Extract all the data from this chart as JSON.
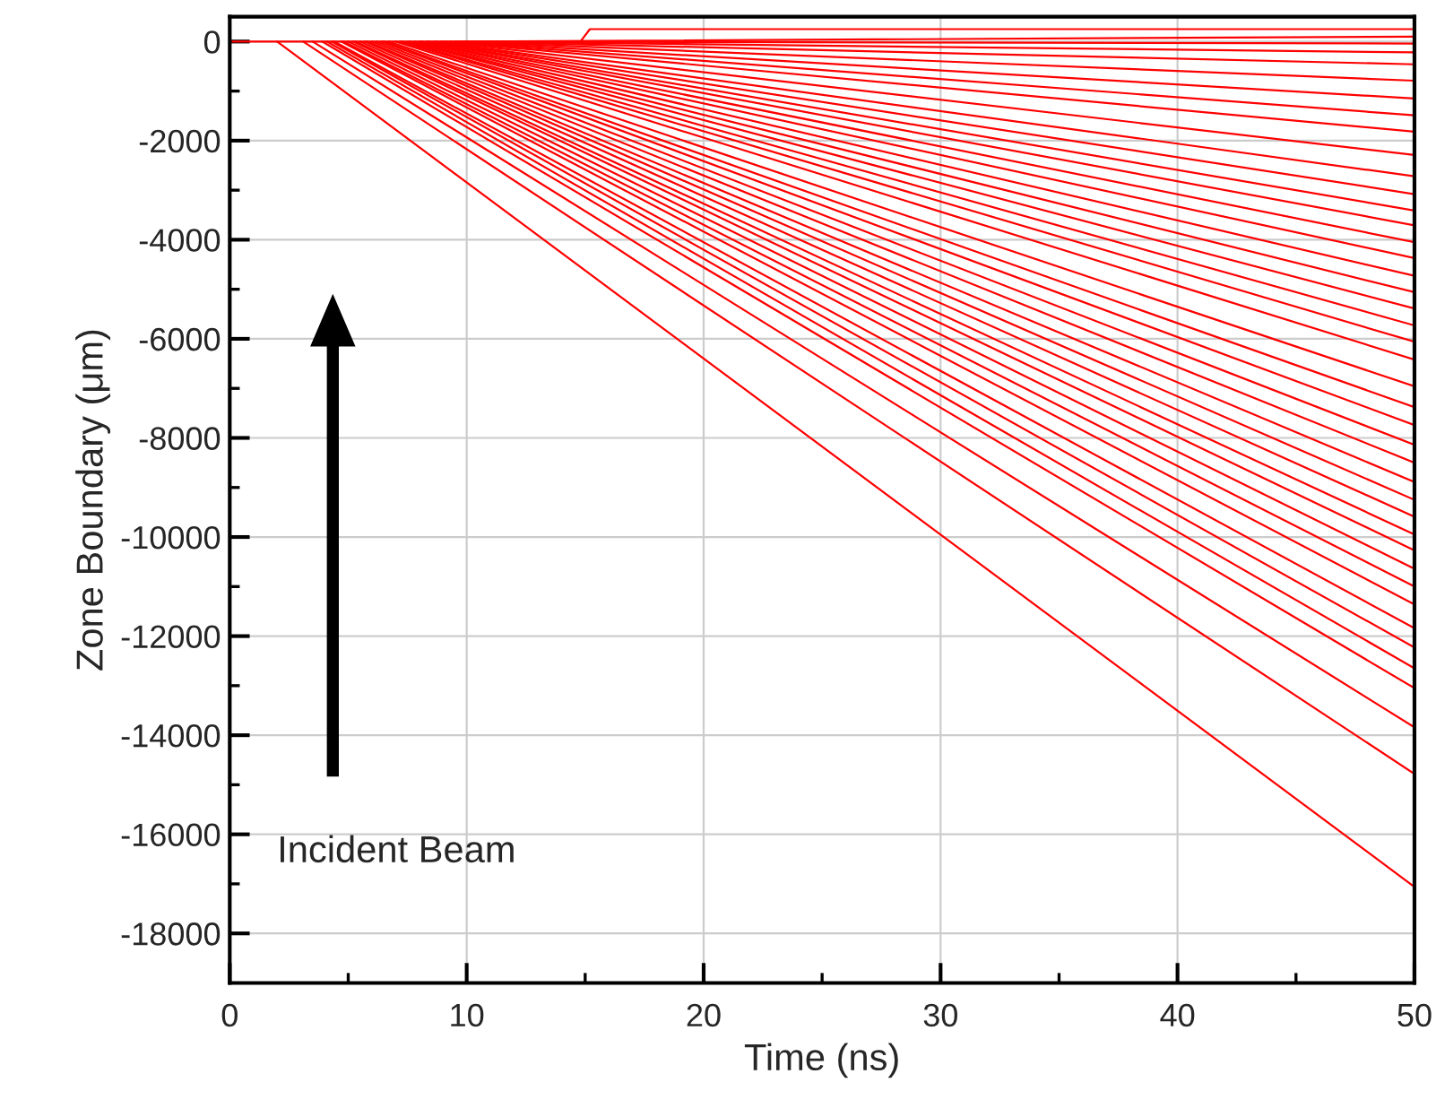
{
  "chart_data": {
    "type": "line",
    "xlabel": "Time (ns)",
    "ylabel": "Zone Boundary (μm)",
    "xlim": [
      0,
      50
    ],
    "ylim": [
      -19000,
      500
    ],
    "xticks": [
      0,
      {
        "value": 5,
        "label": null
      },
      10,
      {
        "value": 15,
        "label": null
      },
      20,
      {
        "value": 25,
        "label": null
      },
      30,
      {
        "value": 35,
        "label": null
      },
      40,
      {
        "value": 45,
        "label": null
      },
      50
    ],
    "yticks": [
      -18000,
      {
        "value": -17000,
        "label": null
      },
      -16000,
      {
        "value": -15000,
        "label": null
      },
      -14000,
      {
        "value": -13000,
        "label": null
      },
      -12000,
      {
        "value": -11000,
        "label": null
      },
      -10000,
      {
        "value": -9000,
        "label": null
      },
      -8000,
      {
        "value": -7000,
        "label": null
      },
      -6000,
      {
        "value": -5000,
        "label": null
      },
      -4000,
      {
        "value": -3000,
        "label": null
      },
      -2000,
      {
        "value": -1000,
        "label": null
      },
      0
    ],
    "grid": true,
    "marker": "none",
    "line_style": "solid",
    "annotations": [
      "Incident Beam"
    ],
    "series": [
      {
        "color": "#ff0000",
        "x": [
          0,
          14.8,
          15.2,
          50
        ],
        "values": [
          0,
          0,
          250,
          250
        ]
      },
      {
        "color": "#ff0000",
        "x": [
          10.0,
          50
        ],
        "values": [
          0,
          100
        ]
      },
      {
        "color": "#ff0000",
        "x": [
          10.0,
          50
        ],
        "values": [
          0,
          -40
        ]
      },
      {
        "color": "#ff0000",
        "x": [
          9.9,
          50
        ],
        "values": [
          0,
          -220
        ]
      },
      {
        "color": "#ff0000",
        "x": [
          9.8,
          50
        ],
        "values": [
          0,
          -460
        ]
      },
      {
        "color": "#ff0000",
        "x": [
          9.6,
          50
        ],
        "values": [
          0,
          -790
        ]
      },
      {
        "color": "#ff0000",
        "x": [
          9.5,
          50
        ],
        "values": [
          0,
          -1150
        ]
      },
      {
        "color": "#ff0000",
        "x": [
          9.3,
          50
        ],
        "values": [
          0,
          -1490
        ]
      },
      {
        "color": "#ff0000",
        "x": [
          9.1,
          50
        ],
        "values": [
          0,
          -1820
        ]
      },
      {
        "color": "#ff0000",
        "x": [
          8.9,
          50
        ],
        "values": [
          0,
          -2290
        ]
      },
      {
        "color": "#ff0000",
        "x": [
          8.7,
          50
        ],
        "values": [
          0,
          -2720
        ]
      },
      {
        "color": "#ff0000",
        "x": [
          8.6,
          50
        ],
        "values": [
          0,
          -3080
        ]
      },
      {
        "color": "#ff0000",
        "x": [
          8.4,
          50
        ],
        "values": [
          0,
          -3410
        ]
      },
      {
        "color": "#ff0000",
        "x": [
          8.3,
          50
        ],
        "values": [
          0,
          -3710
        ]
      },
      {
        "color": "#ff0000",
        "x": [
          8.1,
          50
        ],
        "values": [
          0,
          -4050
        ]
      },
      {
        "color": "#ff0000",
        "x": [
          8.0,
          50
        ],
        "values": [
          0,
          -4370
        ]
      },
      {
        "color": "#ff0000",
        "x": [
          7.8,
          50
        ],
        "values": [
          0,
          -4730
        ]
      },
      {
        "color": "#ff0000",
        "x": [
          7.6,
          50
        ],
        "values": [
          0,
          -5060
        ]
      },
      {
        "color": "#ff0000",
        "x": [
          7.5,
          50
        ],
        "values": [
          0,
          -5390
        ]
      },
      {
        "color": "#ff0000",
        "x": [
          7.3,
          50
        ],
        "values": [
          0,
          -5730
        ]
      },
      {
        "color": "#ff0000",
        "x": [
          7.2,
          50
        ],
        "values": [
          0,
          -6060
        ]
      },
      {
        "color": "#ff0000",
        "x": [
          7.0,
          50
        ],
        "values": [
          0,
          -6420
        ]
      },
      {
        "color": "#ff0000",
        "x": [
          6.7,
          50
        ],
        "values": [
          0,
          -6960
        ]
      },
      {
        "color": "#ff0000",
        "x": [
          6.5,
          50
        ],
        "values": [
          0,
          -7380
        ]
      },
      {
        "color": "#ff0000",
        "x": [
          6.4,
          50
        ],
        "values": [
          0,
          -7740
        ]
      },
      {
        "color": "#ff0000",
        "x": [
          6.2,
          50
        ],
        "values": [
          0,
          -8140
        ]
      },
      {
        "color": "#ff0000",
        "x": [
          6.0,
          50
        ],
        "values": [
          0,
          -8500
        ]
      },
      {
        "color": "#ff0000",
        "x": [
          5.8,
          50
        ],
        "values": [
          0,
          -8890
        ]
      },
      {
        "color": "#ff0000",
        "x": [
          5.7,
          50
        ],
        "values": [
          0,
          -9250
        ]
      },
      {
        "color": "#ff0000",
        "x": [
          5.5,
          50
        ],
        "values": [
          0,
          -9590
        ]
      },
      {
        "color": "#ff0000",
        "x": [
          5.3,
          50
        ],
        "values": [
          0,
          -9950
        ]
      },
      {
        "color": "#ff0000",
        "x": [
          5.2,
          50
        ],
        "values": [
          0,
          -10270
        ]
      },
      {
        "color": "#ff0000",
        "x": [
          5.0,
          50
        ],
        "values": [
          0,
          -10640
        ]
      },
      {
        "color": "#ff0000",
        "x": [
          4.8,
          50
        ],
        "values": [
          0,
          -11000
        ]
      },
      {
        "color": "#ff0000",
        "x": [
          4.7,
          50
        ],
        "values": [
          0,
          -11360
        ]
      },
      {
        "color": "#ff0000",
        "x": [
          4.4,
          50
        ],
        "values": [
          0,
          -11840
        ]
      },
      {
        "color": "#ff0000",
        "x": [
          4.3,
          50
        ],
        "values": [
          0,
          -12230
        ]
      },
      {
        "color": "#ff0000",
        "x": [
          4.1,
          50
        ],
        "values": [
          0,
          -12650
        ]
      },
      {
        "color": "#ff0000",
        "x": [
          3.9,
          50
        ],
        "values": [
          0,
          -13050
        ]
      },
      {
        "color": "#ff0000",
        "x": [
          3.5,
          50
        ],
        "values": [
          0,
          -13840
        ]
      },
      {
        "color": "#ff0000",
        "x": [
          3.1,
          50
        ],
        "values": [
          0,
          -14780
        ]
      },
      {
        "color": "#ff0000",
        "x": [
          2.0,
          50
        ],
        "values": [
          0,
          -17060
        ]
      }
    ]
  }
}
